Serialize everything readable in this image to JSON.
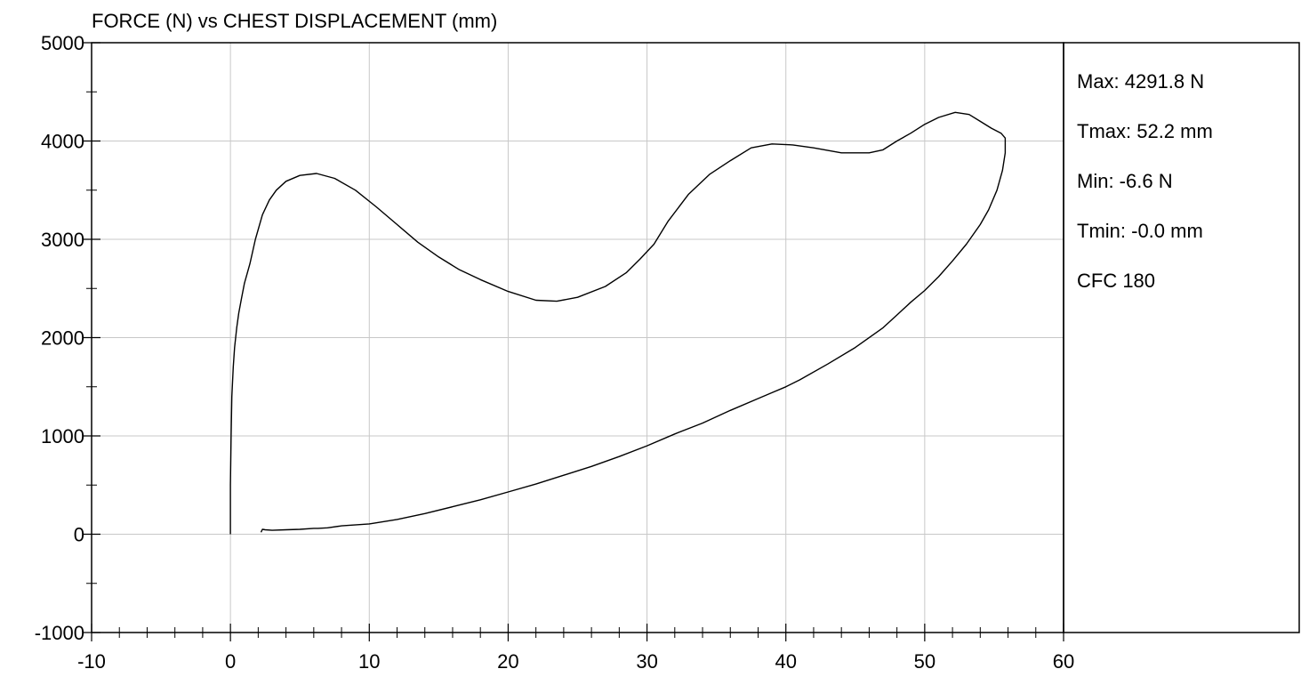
{
  "chart_data": {
    "type": "line",
    "title": "FORCE (N) vs CHEST DISPLACEMENT (mm)",
    "xlabel": "",
    "ylabel": "",
    "xlim": [
      -10,
      60
    ],
    "ylim": [
      -1000,
      5000
    ],
    "x_ticks": [
      -10,
      0,
      10,
      20,
      30,
      40,
      50,
      60
    ],
    "y_ticks": [
      -1000,
      0,
      1000,
      2000,
      3000,
      4000,
      5000
    ],
    "x_tick_labels": [
      "-10",
      "0",
      "10",
      "20",
      "30",
      "40",
      "50",
      "60"
    ],
    "y_tick_labels": [
      "-1000",
      "0",
      "1000",
      "2000",
      "3000",
      "4000",
      "5000"
    ],
    "grid": true,
    "line_color": "#000000",
    "grid_color": "#c8c8c8",
    "series": [
      {
        "x": [
          0.0,
          0.0,
          0.05,
          0.1,
          0.2,
          0.3,
          0.45,
          0.6,
          0.8,
          1.0,
          1.4,
          1.8,
          2.3,
          2.8,
          3.3,
          4.0,
          5.0,
          6.2,
          7.5,
          9.0,
          10.5,
          12.0,
          13.5,
          15.0,
          16.5,
          18.0,
          20.0,
          22.0,
          23.5,
          25.0,
          27.0,
          28.5,
          29.5,
          30.5,
          31.5,
          33.0,
          34.5,
          36.0,
          37.5,
          39.0,
          40.5,
          42.0,
          44.0,
          46.0,
          47.0,
          48.0,
          49.0,
          50.0,
          51.0,
          52.2,
          53.2,
          54.0,
          54.8,
          55.5,
          55.8,
          55.8,
          55.6,
          55.2,
          54.6,
          54.0,
          53.0,
          52.0,
          51.0,
          50.0,
          49.0,
          48.0,
          47.0,
          45.0,
          43.0,
          41.0,
          40.0,
          39.0,
          38.0,
          36.0,
          34.0,
          32.0,
          30.0,
          28.0,
          26.0,
          24.0,
          22.0,
          20.0,
          18.0,
          16.0,
          14.0,
          12.0,
          10.0,
          8.0,
          7.0,
          6.3,
          6.0,
          5.0,
          4.0,
          3.0,
          2.5,
          2.3,
          2.2
        ],
        "y": [
          0,
          500,
          1000,
          1400,
          1700,
          1900,
          2100,
          2250,
          2400,
          2550,
          2750,
          3000,
          3250,
          3400,
          3500,
          3590,
          3650,
          3670,
          3620,
          3500,
          3330,
          3150,
          2970,
          2820,
          2690,
          2590,
          2470,
          2380,
          2370,
          2410,
          2520,
          2660,
          2800,
          2950,
          3180,
          3460,
          3660,
          3800,
          3930,
          3970,
          3960,
          3930,
          3880,
          3880,
          3910,
          4000,
          4080,
          4170,
          4240,
          4291.8,
          4270,
          4200,
          4130,
          4080,
          4030,
          3880,
          3700,
          3500,
          3300,
          3150,
          2950,
          2780,
          2620,
          2480,
          2360,
          2230,
          2100,
          1900,
          1730,
          1570,
          1500,
          1440,
          1380,
          1260,
          1130,
          1020,
          900,
          790,
          690,
          600,
          510,
          430,
          350,
          280,
          210,
          150,
          105,
          85,
          65,
          60,
          60,
          50,
          45,
          40,
          45,
          50,
          20
        ]
      }
    ],
    "annotations": [
      "Max: 4291.8 N",
      "Tmax: 52.2 mm",
      "Min: -6.6 N",
      "Tmin: -0.0 mm",
      "CFC 180"
    ]
  }
}
